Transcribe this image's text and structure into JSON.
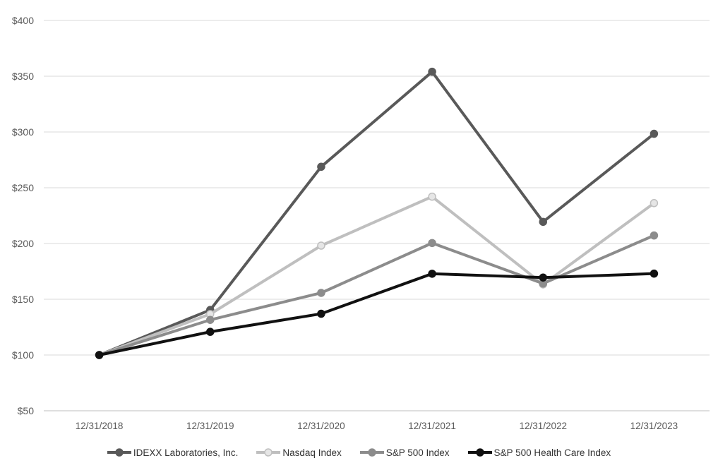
{
  "window": {
    "title": "Comparison of Cumulative Total Return line chart"
  },
  "colors": {
    "background": "#ffffff",
    "gridline": "#d9d9d9",
    "axis_line": "#bfbfbf",
    "tick_label_text": "#595959",
    "legend_text": "#333333"
  },
  "chart_data": {
    "type": "line",
    "title": "",
    "xlabel": "",
    "ylabel": "",
    "grid": true,
    "legend_position": "bottom",
    "ylim": [
      50,
      400
    ],
    "y_tick_step": 50,
    "y_tick_labels": [
      "$50",
      "$100",
      "$150",
      "$200",
      "$250",
      "$300",
      "$350",
      "$400"
    ],
    "categories": [
      "12/31/2018",
      "12/31/2019",
      "12/31/2020",
      "12/31/2021",
      "12/31/2022",
      "12/31/2023"
    ],
    "series": [
      {
        "name": "IDEXX Laboratories, Inc.",
        "color": "#595959",
        "marker_fill": "#595959",
        "marker_stroke": "#595959",
        "values": [
          100,
          140.4,
          268.8,
          354.0,
          219.4,
          298.4
        ]
      },
      {
        "name": "Nasdaq Index",
        "color": "#bfbfbf",
        "marker_fill": "#e6e6e6",
        "marker_stroke": "#bfbfbf",
        "values": [
          100,
          136.7,
          198.1,
          242.0,
          163.3,
          236.2
        ]
      },
      {
        "name": "S&P 500 Index",
        "color": "#8c8c8c",
        "marker_fill": "#8c8c8c",
        "marker_stroke": "#8c8c8c",
        "values": [
          100,
          131.5,
          155.7,
          200.4,
          164.1,
          207.2
        ]
      },
      {
        "name": "S&P 500 Health Care Index",
        "color": "#111111",
        "marker_fill": "#111111",
        "marker_stroke": "#111111",
        "values": [
          100,
          120.8,
          137.0,
          172.9,
          169.5,
          173.0
        ]
      }
    ]
  }
}
